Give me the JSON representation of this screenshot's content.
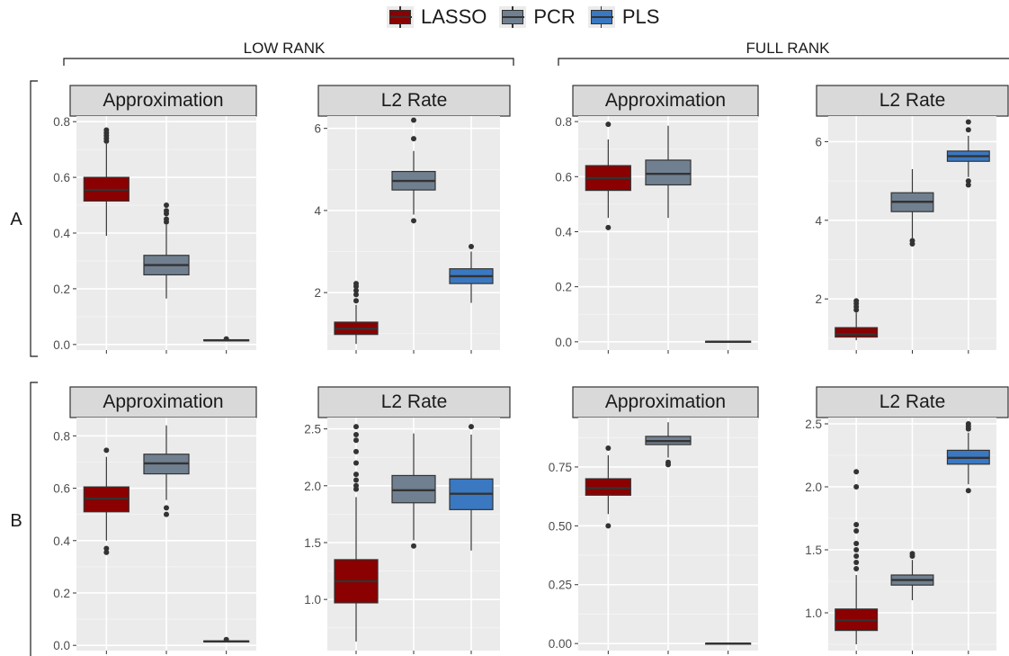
{
  "legend": [
    {
      "label": "LASSO",
      "color": "#8B0000"
    },
    {
      "label": "PCR",
      "color": "#708090"
    },
    {
      "label": "PLS",
      "color": "#3A78C2"
    }
  ],
  "groups": {
    "left": "LOW RANK",
    "right": "FULL RANK"
  },
  "rows": {
    "a": "A",
    "b": "B"
  },
  "chart_data": [
    {
      "type": "box",
      "row": "A",
      "group": "LOW RANK",
      "title": "Approximation",
      "ylim": [
        -0.02,
        0.82
      ],
      "yticks": [
        0.0,
        0.2,
        0.4,
        0.6,
        0.8
      ],
      "ytick_labels": [
        "0.0",
        "0.2",
        "0.4",
        "0.6",
        "0.8"
      ],
      "series": [
        {
          "name": "LASSO",
          "whisker_low": 0.39,
          "q1": 0.515,
          "median": 0.555,
          "q3": 0.6,
          "whisker_high": 0.72,
          "outliers": [
            0.73,
            0.74,
            0.75,
            0.76,
            0.77
          ]
        },
        {
          "name": "PCR",
          "whisker_low": 0.165,
          "q1": 0.25,
          "median": 0.285,
          "q3": 0.32,
          "whisker_high": 0.43,
          "outliers": [
            0.44,
            0.45,
            0.47,
            0.48,
            0.5
          ]
        },
        {
          "name": "PLS",
          "whisker_low": 0.012,
          "q1": 0.013,
          "median": 0.015,
          "q3": 0.017,
          "whisker_high": 0.018,
          "outliers": [
            0.02
          ]
        }
      ]
    },
    {
      "type": "box",
      "row": "A",
      "group": "LOW RANK",
      "title": "L2 Rate",
      "ylim": [
        0.6,
        6.3
      ],
      "yticks": [
        2,
        4,
        6
      ],
      "ytick_labels": [
        "2",
        "4",
        "6"
      ],
      "series": [
        {
          "name": "LASSO",
          "whisker_low": 0.75,
          "q1": 0.98,
          "median": 1.12,
          "q3": 1.28,
          "whisker_high": 1.7,
          "outliers": [
            1.8,
            1.95,
            2.05,
            2.15,
            2.22
          ]
        },
        {
          "name": "PCR",
          "whisker_low": 3.9,
          "q1": 4.5,
          "median": 4.72,
          "q3": 4.95,
          "whisker_high": 5.45,
          "outliers": [
            3.75,
            5.75,
            6.2
          ]
        },
        {
          "name": "PLS",
          "whisker_low": 1.75,
          "q1": 2.22,
          "median": 2.4,
          "q3": 2.58,
          "whisker_high": 3.0,
          "outliers": [
            3.12
          ]
        }
      ]
    },
    {
      "type": "box",
      "row": "A",
      "group": "FULL RANK",
      "title": "Approximation",
      "ylim": [
        -0.03,
        0.82
      ],
      "yticks": [
        0.0,
        0.2,
        0.4,
        0.6,
        0.8
      ],
      "ytick_labels": [
        "0.0",
        "0.2",
        "0.4",
        "0.6",
        "0.8"
      ],
      "series": [
        {
          "name": "LASSO",
          "whisker_low": 0.45,
          "q1": 0.55,
          "median": 0.595,
          "q3": 0.64,
          "whisker_high": 0.735,
          "outliers": [
            0.415,
            0.79
          ]
        },
        {
          "name": "PCR",
          "whisker_low": 0.45,
          "q1": 0.57,
          "median": 0.61,
          "q3": 0.66,
          "whisker_high": 0.785,
          "outliers": []
        },
        {
          "name": "PLS",
          "whisker_low": -0.003,
          "q1": -0.002,
          "median": 0.0,
          "q3": 0.002,
          "whisker_high": 0.003,
          "outliers": []
        }
      ]
    },
    {
      "type": "box",
      "row": "A",
      "group": "FULL RANK",
      "title": "L2 Rate",
      "ylim": [
        0.7,
        6.65
      ],
      "yticks": [
        2,
        4,
        6
      ],
      "ytick_labels": [
        "2",
        "4",
        "6"
      ],
      "series": [
        {
          "name": "LASSO",
          "whisker_low": 0.95,
          "q1": 1.03,
          "median": 1.1,
          "q3": 1.27,
          "whisker_high": 1.65,
          "outliers": [
            1.72,
            1.8,
            1.88,
            1.95
          ]
        },
        {
          "name": "PCR",
          "whisker_low": 3.55,
          "q1": 4.22,
          "median": 4.47,
          "q3": 4.7,
          "whisker_high": 5.3,
          "outliers": [
            3.4,
            3.48
          ]
        },
        {
          "name": "PLS",
          "whisker_low": 5.1,
          "q1": 5.5,
          "median": 5.63,
          "q3": 5.76,
          "whisker_high": 6.15,
          "outliers": [
            4.9,
            5.0,
            6.3,
            6.5
          ]
        }
      ]
    },
    {
      "type": "box",
      "row": "B",
      "group": "LOW RANK",
      "title": "Approximation",
      "ylim": [
        -0.02,
        0.87
      ],
      "yticks": [
        0.0,
        0.2,
        0.4,
        0.6,
        0.8
      ],
      "ytick_labels": [
        "0.0",
        "0.2",
        "0.4",
        "0.6",
        "0.8"
      ],
      "series": [
        {
          "name": "LASSO",
          "whisker_low": 0.4,
          "q1": 0.51,
          "median": 0.56,
          "q3": 0.605,
          "whisker_high": 0.72,
          "outliers": [
            0.355,
            0.37,
            0.745
          ]
        },
        {
          "name": "PCR",
          "whisker_low": 0.555,
          "q1": 0.655,
          "median": 0.695,
          "q3": 0.73,
          "whisker_high": 0.84,
          "outliers": [
            0.5,
            0.525
          ]
        },
        {
          "name": "PLS",
          "whisker_low": 0.012,
          "q1": 0.013,
          "median": 0.015,
          "q3": 0.017,
          "whisker_high": 0.018,
          "outliers": [
            0.022
          ]
        }
      ]
    },
    {
      "type": "box",
      "row": "B",
      "group": "LOW RANK",
      "title": "L2 Rate",
      "ylim": [
        0.55,
        2.6
      ],
      "yticks": [
        1.0,
        1.5,
        2.0,
        2.5
      ],
      "ytick_labels": [
        "1.0",
        "1.5",
        "2.0",
        "2.5"
      ],
      "series": [
        {
          "name": "LASSO",
          "whisker_low": 0.63,
          "q1": 0.97,
          "median": 1.16,
          "q3": 1.35,
          "whisker_high": 1.9,
          "outliers": [
            1.97,
            2.0,
            2.05,
            2.1,
            2.2,
            2.3,
            2.4,
            2.45,
            2.52
          ]
        },
        {
          "name": "PCR",
          "whisker_low": 1.52,
          "q1": 1.85,
          "median": 1.96,
          "q3": 2.09,
          "whisker_high": 2.46,
          "outliers": [
            1.47
          ]
        },
        {
          "name": "PLS",
          "whisker_low": 1.43,
          "q1": 1.79,
          "median": 1.93,
          "q3": 2.06,
          "whisker_high": 2.45,
          "outliers": [
            2.52
          ]
        }
      ]
    },
    {
      "type": "box",
      "row": "B",
      "group": "FULL RANK",
      "title": "Approximation",
      "ylim": [
        -0.03,
        0.96
      ],
      "yticks": [
        0.0,
        0.25,
        0.5,
        0.75
      ],
      "ytick_labels": [
        "0.00",
        "0.25",
        "0.50",
        "0.75"
      ],
      "series": [
        {
          "name": "LASSO",
          "whisker_low": 0.55,
          "q1": 0.63,
          "median": 0.66,
          "q3": 0.7,
          "whisker_high": 0.8,
          "outliers": [
            0.5,
            0.83
          ]
        },
        {
          "name": "PCR",
          "whisker_low": 0.79,
          "q1": 0.845,
          "median": 0.86,
          "q3": 0.88,
          "whisker_high": 0.94,
          "outliers": [
            0.76,
            0.77
          ]
        },
        {
          "name": "PLS",
          "whisker_low": -0.002,
          "q1": -0.001,
          "median": 0.0,
          "q3": 0.001,
          "whisker_high": 0.002,
          "outliers": []
        }
      ]
    },
    {
      "type": "box",
      "row": "B",
      "group": "FULL RANK",
      "title": "L2 Rate",
      "ylim": [
        0.7,
        2.55
      ],
      "yticks": [
        1.0,
        1.5,
        2.0,
        2.5
      ],
      "ytick_labels": [
        "1.0",
        "1.5",
        "2.0",
        "2.5"
      ],
      "series": [
        {
          "name": "LASSO",
          "whisker_low": 0.75,
          "q1": 0.86,
          "median": 0.94,
          "q3": 1.03,
          "whisker_high": 1.3,
          "outliers": [
            1.35,
            1.4,
            1.45,
            1.5,
            1.55,
            1.65,
            1.7,
            2.0,
            2.12
          ]
        },
        {
          "name": "PCR",
          "whisker_low": 1.1,
          "q1": 1.22,
          "median": 1.26,
          "q3": 1.3,
          "whisker_high": 1.42,
          "outliers": [
            1.45,
            1.47
          ]
        },
        {
          "name": "PLS",
          "whisker_low": 2.02,
          "q1": 2.18,
          "median": 2.23,
          "q3": 2.29,
          "whisker_high": 2.43,
          "outliers": [
            1.97,
            2.46,
            2.48,
            2.5
          ]
        }
      ]
    }
  ]
}
